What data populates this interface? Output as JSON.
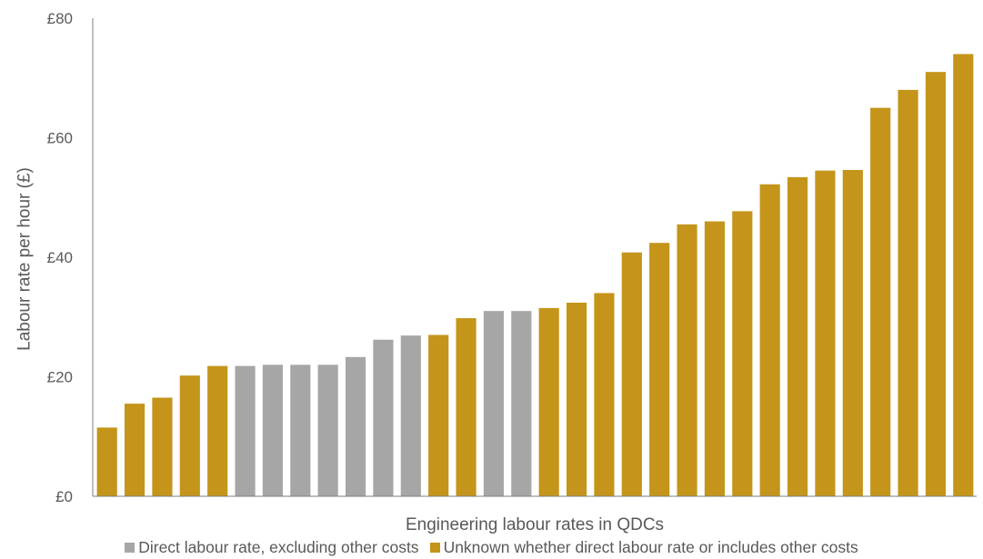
{
  "colors": {
    "gold": "#C4951A",
    "grey": "#A6A6A6",
    "text": "#595959",
    "axis": "#7f7f7f"
  },
  "chart_data": {
    "type": "bar",
    "title": "",
    "xlabel": "Engineering labour rates in QDCs",
    "ylabel": "Labour rate per hour (£)",
    "ylim": [
      0,
      80
    ],
    "yticks": [
      0,
      20,
      40,
      60,
      80
    ],
    "ytick_labels": [
      "£0",
      "£20",
      "£40",
      "£60",
      "£80"
    ],
    "grid": false,
    "legend_position": "bottom",
    "legend": [
      {
        "key": "direct",
        "label": "Direct labour rate, excluding other costs",
        "color": "#A6A6A6"
      },
      {
        "key": "unknown",
        "label": "Unknown whether direct labour rate or includes other costs",
        "color": "#C4951A"
      }
    ],
    "values": [
      11.5,
      15.5,
      16.5,
      20.2,
      21.8,
      21.8,
      22.0,
      22.0,
      22.0,
      23.3,
      26.2,
      26.9,
      27.0,
      29.8,
      31.0,
      31.0,
      31.5,
      32.4,
      34.0,
      40.8,
      42.4,
      45.5,
      46.0,
      47.7,
      52.2,
      53.4,
      54.5,
      54.6,
      65.0,
      68.0,
      71.0,
      74.0
    ],
    "series_keys": [
      "unknown",
      "unknown",
      "unknown",
      "unknown",
      "unknown",
      "direct",
      "direct",
      "direct",
      "direct",
      "direct",
      "direct",
      "direct",
      "unknown",
      "unknown",
      "direct",
      "direct",
      "unknown",
      "unknown",
      "unknown",
      "unknown",
      "unknown",
      "unknown",
      "unknown",
      "unknown",
      "unknown",
      "unknown",
      "unknown",
      "unknown",
      "unknown",
      "unknown",
      "unknown",
      "unknown"
    ]
  }
}
